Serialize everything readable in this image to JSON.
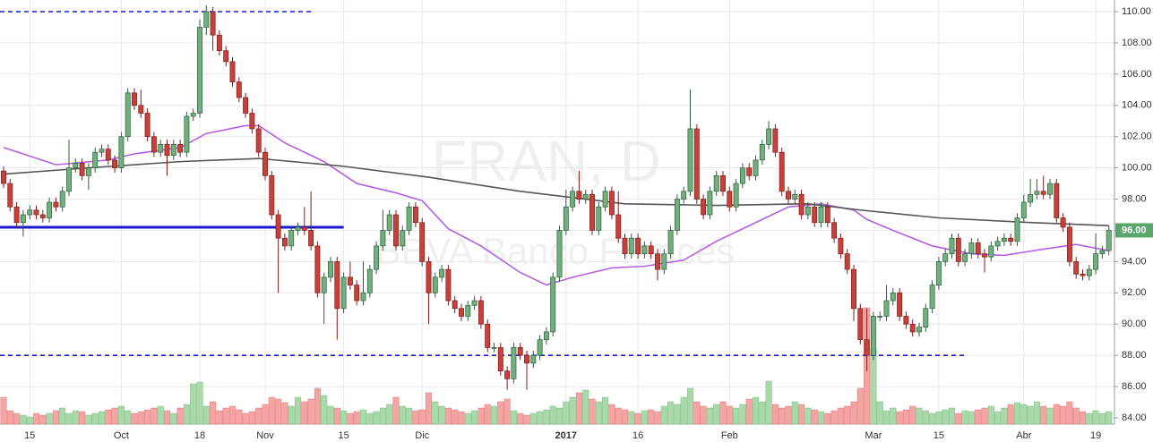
{
  "chart_data": {
    "type": "candlestick",
    "watermark": "FRAN, D",
    "watermark_subtitle": "BBVA Banco Frances",
    "ylim": [
      84,
      110
    ],
    "yticks": [
      {
        "value": 84,
        "label": "84.00"
      },
      {
        "value": 86,
        "label": "86.00"
      },
      {
        "value": 88,
        "label": "88.00"
      },
      {
        "value": 90,
        "label": "90.00"
      },
      {
        "value": 92,
        "label": "92.00"
      },
      {
        "value": 94,
        "label": "94.00"
      },
      {
        "value": 96,
        "label": "96.00"
      },
      {
        "value": 98,
        "label": "98.00"
      },
      {
        "value": 100,
        "label": "100.00"
      },
      {
        "value": 102,
        "label": "102.00"
      },
      {
        "value": 104,
        "label": "104.00"
      },
      {
        "value": 106,
        "label": "106.00"
      },
      {
        "value": 108,
        "label": "108.00"
      },
      {
        "value": 110,
        "label": "110.00"
      }
    ],
    "grid": true,
    "up_color": "#6fb07e",
    "down_color": "#c9403a",
    "volume_up_color": "#a9d8ab",
    "volume_down_color": "#f5a3a3",
    "volume_lim": [
      0,
      140
    ],
    "categories": [
      null,
      null,
      null,
      null,
      "15",
      null,
      null,
      null,
      null,
      null,
      null,
      null,
      null,
      null,
      null,
      null,
      null,
      null,
      "Oct",
      null,
      null,
      null,
      null,
      null,
      null,
      null,
      null,
      null,
      null,
      null,
      "18",
      null,
      null,
      null,
      null,
      null,
      null,
      null,
      null,
      null,
      "Nov",
      null,
      null,
      null,
      null,
      null,
      null,
      null,
      null,
      null,
      null,
      null,
      "15",
      null,
      null,
      null,
      null,
      null,
      null,
      null,
      null,
      null,
      null,
      null,
      "Dic",
      null,
      null,
      null,
      null,
      null,
      null,
      null,
      null,
      null,
      null,
      null,
      null,
      null,
      null,
      null,
      null,
      null,
      null,
      null,
      null,
      null,
      "2017",
      null,
      null,
      null,
      null,
      null,
      null,
      null,
      null,
      null,
      null,
      "16",
      null,
      null,
      null,
      null,
      null,
      null,
      null,
      null,
      null,
      null,
      null,
      null,
      null,
      "Feb",
      null,
      null,
      null,
      null,
      null,
      null,
      null,
      null,
      null,
      null,
      null,
      null,
      null,
      null,
      null,
      null,
      null,
      null,
      null,
      null,
      null,
      "Mar",
      null,
      null,
      null,
      null,
      null,
      null,
      null,
      null,
      null,
      "15",
      null,
      null,
      null,
      null,
      null,
      null,
      null,
      null,
      null,
      null,
      null,
      null,
      "Abr",
      null,
      null,
      null,
      null,
      null,
      null,
      null,
      null,
      null,
      null,
      "19",
      null,
      null
    ],
    "open": [
      99.8,
      99,
      97.5,
      96.5,
      97,
      97.3,
      97,
      96.8,
      97.8,
      97.5,
      98.5,
      100,
      100.3,
      99.5,
      100,
      101,
      101.2,
      100.5,
      100,
      102,
      104.8,
      104,
      103.5,
      102,
      101,
      101.5,
      100.8,
      101.5,
      101,
      103.3,
      103.5,
      109,
      110,
      108.5,
      107.5,
      106.8,
      105.5,
      104.5,
      103.5,
      102.5,
      101,
      99.5,
      97,
      95.5,
      95,
      96,
      96.2,
      96,
      95,
      92,
      93,
      94,
      91,
      93,
      92.5,
      91.5,
      92,
      93.5,
      95,
      96,
      97,
      95,
      96,
      97.5,
      96.5,
      94,
      92,
      93,
      93.5,
      91.5,
      91,
      90.5,
      91.2,
      91.5,
      90,
      88.5,
      88.5,
      87,
      86.5,
      88.5,
      88,
      87.5,
      88,
      89,
      89.5,
      93,
      96,
      97.5,
      98.5,
      98,
      98.3,
      96,
      97.5,
      98.5,
      97,
      95.5,
      94.5,
      95.5,
      94.5,
      95,
      94.5,
      93.5,
      94.5,
      96,
      98,
      98.5,
      102.5,
      98,
      97,
      98.5,
      99.5,
      98.5,
      97.5,
      99,
      100,
      99.5,
      100.5,
      101.5,
      102.5,
      101,
      98.5,
      98,
      98.3,
      97,
      97.5,
      96.5,
      97.5,
      96.5,
      95.5,
      94.5,
      93.5,
      91,
      89,
      88,
      90.5,
      90.5,
      91.5,
      92,
      90.5,
      90,
      89.5,
      89.8,
      91,
      92.5,
      94,
      94.5,
      95.5,
      94,
      94.5,
      95.2,
      94.5,
      94.3,
      95,
      95.3,
      95.5,
      95.3,
      96.8,
      97.8,
      98.3,
      98.5,
      98.3,
      99,
      96.8,
      96.2,
      94,
      93.2,
      93.1,
      93.5,
      94.5,
      94.7
    ],
    "high": [
      100.1,
      99.3,
      97.8,
      97.3,
      97.6,
      97.6,
      97.3,
      98.1,
      98.1,
      98.8,
      101.8,
      100.6,
      100.6,
      100.3,
      101.3,
      101.5,
      101.5,
      100.8,
      102.3,
      105.1,
      105.1,
      105,
      103.8,
      102.3,
      101.8,
      101.8,
      101.8,
      101.8,
      103.6,
      103.8,
      109.5,
      110.4,
      110.3,
      108.8,
      107.8,
      107.1,
      105.8,
      104.8,
      103.8,
      102.8,
      101.3,
      99.8,
      97.3,
      95.8,
      96.3,
      96.5,
      97.5,
      98.5,
      95.3,
      93.3,
      94.3,
      94.3,
      93.3,
      94,
      92.8,
      94,
      93.8,
      95.3,
      97.3,
      97.3,
      97.3,
      96.3,
      97.8,
      97.8,
      96.8,
      94.3,
      93.3,
      93.8,
      93.8,
      91.8,
      91.3,
      91.5,
      91.8,
      91.8,
      90.3,
      88.8,
      88.8,
      87.3,
      88.8,
      88.8,
      88.3,
      88.3,
      89.3,
      89.8,
      93.3,
      96.3,
      98.6,
      98.8,
      99.8,
      98.6,
      98.6,
      97.8,
      98.8,
      98.8,
      98.5,
      95.8,
      95.8,
      95.8,
      95.3,
      95.3,
      94.8,
      94.8,
      96.3,
      98.3,
      98.8,
      105,
      102.8,
      98.3,
      98.8,
      99.8,
      99.8,
      98.8,
      99.3,
      100.3,
      100.3,
      100.8,
      101.8,
      103,
      102.8,
      101.3,
      98.8,
      98.6,
      98.6,
      97.8,
      97.8,
      97.8,
      97.8,
      96.8,
      95.8,
      94.8,
      93.8,
      91.3,
      91,
      90.8,
      90.8,
      92.5,
      92.3,
      92.3,
      90.8,
      90.3,
      90.1,
      91.3,
      92.8,
      94.3,
      94.8,
      95.8,
      95.8,
      94.8,
      95.5,
      95.5,
      94.8,
      95.3,
      95.6,
      95.8,
      95.8,
      97.1,
      98.3,
      99.3,
      99.3,
      99.5,
      99.3,
      99.3,
      97.1,
      96.5,
      94.3,
      93.5,
      93.8,
      95.8,
      95,
      96.3
    ],
    "low": [
      98.7,
      97.2,
      96.2,
      95.6,
      96.7,
      96.7,
      96.5,
      96.5,
      97.2,
      97.2,
      98.2,
      99.7,
      99.2,
      98.6,
      99.7,
      100.7,
      100.2,
      99.7,
      99.7,
      101.7,
      103.7,
      103.2,
      101.7,
      100.7,
      100.7,
      99.5,
      100.5,
      100.7,
      100.7,
      103,
      103.2,
      108.5,
      107.5,
      107.2,
      106.5,
      105.2,
      104.2,
      103.2,
      102.2,
      100.7,
      99.2,
      96.7,
      92,
      94.7,
      94.7,
      95.7,
      95.7,
      94.7,
      91.7,
      90,
      92.7,
      89,
      90.7,
      92.2,
      91.2,
      91.2,
      91.7,
      93.2,
      94.7,
      95.7,
      94.7,
      94.7,
      95.7,
      96.2,
      93.7,
      90,
      91.7,
      92.7,
      91.2,
      90.7,
      90.2,
      90.2,
      90.9,
      89.7,
      88.2,
      88.2,
      86.7,
      85.8,
      86.2,
      87.7,
      85.8,
      87.2,
      87.7,
      88.7,
      89.2,
      92.7,
      95.7,
      97.2,
      97.7,
      97.7,
      95.7,
      95.7,
      97.2,
      96.7,
      95.2,
      94.2,
      94.2,
      94.2,
      94.2,
      94.2,
      92.8,
      93.2,
      94.2,
      95.7,
      97.7,
      98.2,
      97.7,
      96.7,
      96.7,
      98.2,
      98.2,
      97.2,
      97.2,
      98.7,
      99.2,
      99.2,
      100.2,
      101.2,
      100.7,
      98.2,
      97.7,
      97.7,
      96.7,
      96.7,
      96.2,
      96.2,
      96.2,
      95.2,
      94.2,
      93.2,
      90.2,
      88.7,
      87,
      87.7,
      90.2,
      90.2,
      91.2,
      90.2,
      89.7,
      89.2,
      89.2,
      89.5,
      90.7,
      92.2,
      93.7,
      94.2,
      93.7,
      93.7,
      94.2,
      94.2,
      93.3,
      94,
      94.7,
      95,
      95,
      95,
      96.5,
      97.5,
      98,
      98,
      98,
      96.5,
      95.9,
      93.7,
      92.9,
      92.8,
      92.8,
      93.2,
      94.2,
      94.4
    ],
    "close": [
      99,
      97.5,
      96.5,
      97,
      97.3,
      97,
      96.8,
      97.8,
      97.5,
      98.5,
      100,
      100.3,
      99.5,
      100,
      101,
      101.2,
      100.5,
      100,
      102,
      104.8,
      104,
      103.5,
      102,
      101,
      101.5,
      100.8,
      101.5,
      101,
      103.3,
      103.5,
      109,
      110,
      108.5,
      107.5,
      106.8,
      105.5,
      104.5,
      103.5,
      102.5,
      101,
      99.5,
      97,
      95.5,
      95,
      96,
      96.2,
      96,
      95,
      92,
      93,
      94,
      91,
      93,
      92.5,
      91.5,
      92,
      93.5,
      95,
      96,
      97,
      95,
      96,
      97.5,
      96.5,
      94,
      92,
      93,
      93.5,
      91.5,
      91,
      90.5,
      91.2,
      91.5,
      90,
      88.5,
      88.5,
      87,
      86.5,
      88.5,
      88,
      87.5,
      88,
      89,
      89.5,
      93,
      96,
      97.5,
      98.5,
      98,
      98.3,
      96,
      97.5,
      98.5,
      97,
      95.5,
      94.5,
      95.5,
      94.5,
      95,
      94.5,
      93.5,
      94.5,
      96,
      98,
      98.5,
      102.5,
      98,
      97,
      98.5,
      99.5,
      98.5,
      97.5,
      99,
      100,
      99.5,
      100.5,
      101.5,
      102.5,
      101,
      98.5,
      98,
      98.3,
      97,
      97.5,
      96.5,
      97.5,
      96.5,
      95.5,
      94.5,
      93.5,
      91,
      89,
      88,
      90.5,
      90.5,
      91.5,
      92,
      90.5,
      90,
      89.5,
      89.8,
      91,
      92.5,
      94,
      94.5,
      95.5,
      94,
      94.5,
      95.2,
      94.5,
      94.3,
      95,
      95.3,
      95.5,
      95.3,
      96.8,
      97.8,
      98.3,
      98.5,
      98.3,
      99,
      96.8,
      96.2,
      94,
      93.2,
      93.1,
      93.5,
      94.5,
      94.7,
      96
    ],
    "volume": [
      30,
      15,
      12,
      10,
      8,
      12,
      10,
      12,
      15,
      18,
      12,
      15,
      14,
      10,
      12,
      14,
      16,
      18,
      20,
      15,
      12,
      14,
      16,
      18,
      20,
      15,
      12,
      18,
      22,
      45,
      47,
      20,
      25,
      15,
      18,
      20,
      16,
      12,
      14,
      18,
      22,
      30,
      28,
      24,
      20,
      30,
      25,
      28,
      40,
      32,
      20,
      18,
      15,
      12,
      14,
      16,
      12,
      14,
      18,
      22,
      30,
      20,
      18,
      15,
      16,
      35,
      25,
      20,
      18,
      16,
      14,
      12,
      15,
      18,
      22,
      20,
      25,
      28,
      15,
      12,
      10,
      12,
      14,
      16,
      20,
      18,
      25,
      30,
      35,
      38,
      28,
      25,
      30,
      22,
      18,
      16,
      14,
      12,
      15,
      16,
      14,
      20,
      25,
      22,
      30,
      40,
      25,
      20,
      18,
      22,
      25,
      20,
      18,
      22,
      28,
      30,
      25,
      48,
      22,
      18,
      20,
      25,
      22,
      18,
      16,
      14,
      12,
      15,
      18,
      20,
      25,
      40,
      130,
      85,
      25,
      15,
      18,
      14,
      16,
      20,
      18,
      15,
      12,
      14,
      16,
      18,
      12,
      15,
      14,
      16,
      18,
      20,
      14,
      18,
      22,
      24,
      22,
      20,
      25,
      20,
      18,
      22,
      20,
      25,
      18,
      14,
      12,
      15,
      12,
      14
    ],
    "moving_averages": [
      {
        "color": "#b65ee6",
        "x": [
          0,
          8,
          16,
          20,
          27,
          31,
          37,
          39,
          43,
          49,
          54,
          60,
          64,
          68,
          73,
          79,
          83,
          87,
          93,
          98,
          104,
          109,
          115,
          120,
          125,
          130,
          132,
          136,
          142,
          148,
          153,
          159,
          164,
          169
        ],
        "values": [
          101.3,
          100.2,
          100.5,
          100.9,
          101.3,
          102.2,
          102.7,
          102.7,
          101.6,
          100.4,
          99,
          98.4,
          97.9,
          96.1,
          95,
          93.3,
          92.5,
          93,
          93.6,
          93.7,
          94.1,
          95.3,
          96.5,
          97.5,
          97.7,
          97.3,
          96.7,
          96,
          95,
          94.5,
          94.4,
          94.8,
          95.1,
          94.7
        ]
      },
      {
        "color": "#555555",
        "x": [
          0,
          13,
          27,
          39,
          52,
          65,
          79,
          95,
          109,
          123,
          131,
          143,
          157,
          169
        ],
        "values": [
          99.6,
          100,
          100.4,
          100.6,
          100.1,
          99.4,
          98.5,
          97.7,
          97.6,
          97.7,
          97.3,
          96.8,
          96.5,
          96.3
        ]
      }
    ],
    "levels": [
      {
        "value": 110,
        "end": 47,
        "color": "#1a1acc",
        "dashed": true
      },
      {
        "value": 96.2,
        "end": 52,
        "color": "#1a1acc",
        "dashed": false
      },
      {
        "value": 88,
        "end": 147,
        "color": "#1a1acc",
        "dashed": true
      }
    ],
    "last_price": {
      "value": 96,
      "label": "96.00",
      "color": "#5aa56a"
    }
  }
}
